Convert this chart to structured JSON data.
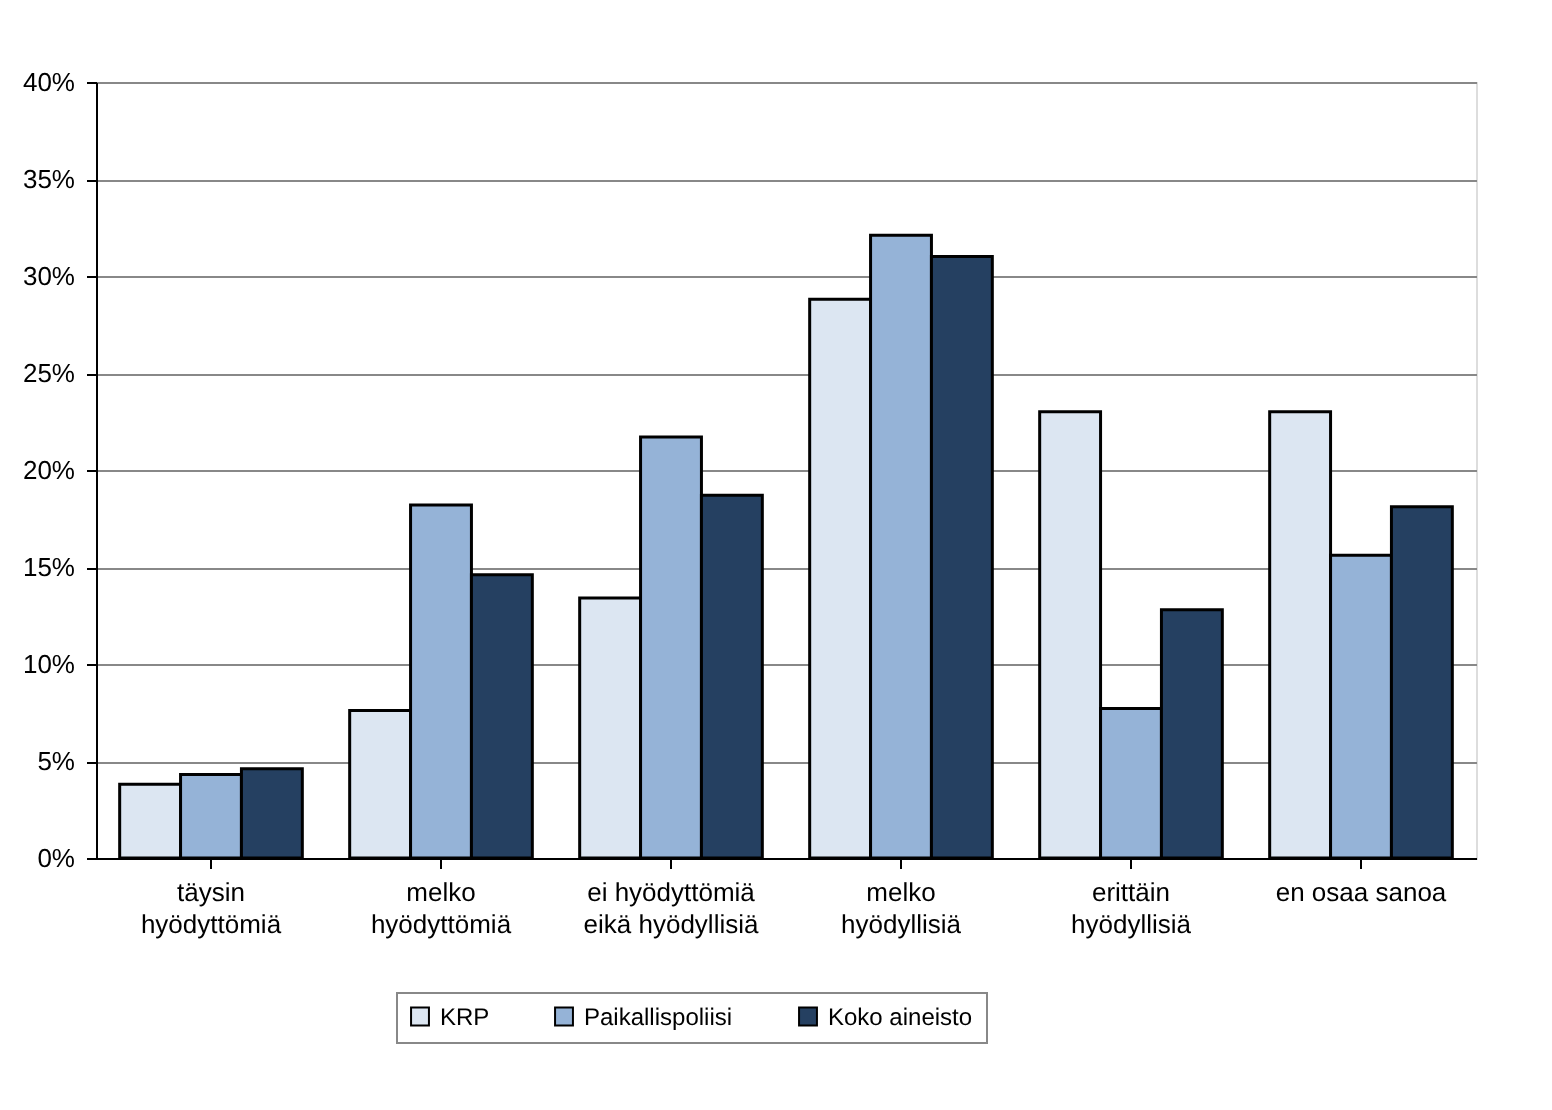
{
  "chart_data": {
    "type": "bar",
    "categories": [
      "täysin\nhyödyttömiä",
      "melko\nhyödyttömiä",
      "ei hyödyttömiä\neikä hyödyllisiä",
      "melko\nhyödyllisiä",
      "erittäin\nhyödyllisiä",
      "en osaa sanoa"
    ],
    "series": [
      {
        "name": "KRP",
        "color": "#dce6f2",
        "values": [
          3.8,
          7.6,
          13.4,
          28.8,
          23.0,
          23.0
        ]
      },
      {
        "name": "Paikallispoliisi",
        "color": "#95b3d7",
        "values": [
          4.3,
          18.2,
          21.7,
          32.1,
          7.7,
          15.6
        ]
      },
      {
        "name": "Koko aineisto",
        "color": "#254061",
        "values": [
          4.6,
          14.6,
          18.7,
          31.0,
          12.8,
          18.1
        ]
      }
    ],
    "ylim": [
      0,
      40
    ],
    "yticks": [
      {
        "value": 0,
        "label": "0%"
      },
      {
        "value": 5,
        "label": "5%"
      },
      {
        "value": 10,
        "label": "10%"
      },
      {
        "value": 15,
        "label": "15%"
      },
      {
        "value": 20,
        "label": "20%"
      },
      {
        "value": 25,
        "label": "25%"
      },
      {
        "value": 30,
        "label": "30%"
      },
      {
        "value": 35,
        "label": "35%"
      },
      {
        "value": 40,
        "label": "40%"
      }
    ],
    "grid": "y",
    "legend": "bottom"
  }
}
